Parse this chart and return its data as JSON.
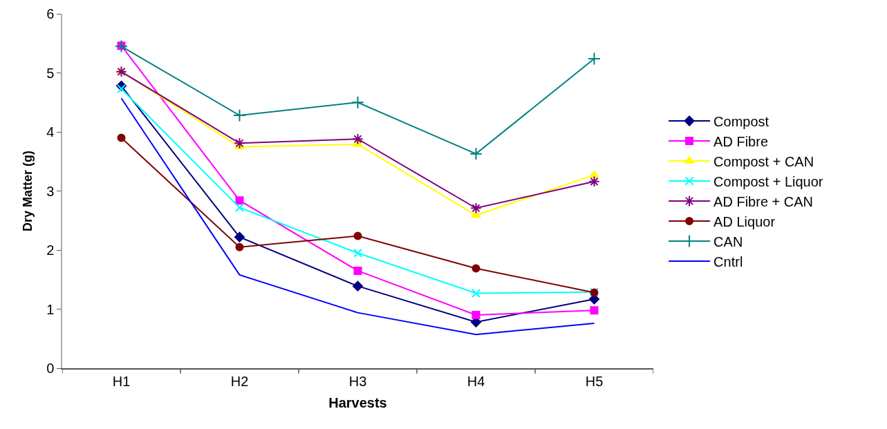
{
  "chart_data": {
    "type": "line",
    "xlabel": "Harvests",
    "ylabel": "Dry Matter (g)",
    "categories": [
      "H1",
      "H2",
      "H3",
      "H4",
      "H5"
    ],
    "ylim": [
      0,
      6
    ],
    "yticks": [
      0,
      1,
      2,
      3,
      4,
      5,
      6
    ],
    "grid": false,
    "legend": "right",
    "line_style": "solid",
    "series": [
      {
        "name": "Compost",
        "color": "#000080",
        "marker": "diamond",
        "values": [
          4.78,
          2.22,
          1.39,
          0.78,
          1.17
        ]
      },
      {
        "name": "AD Fibre",
        "color": "#ff00ff",
        "marker": "square",
        "values": [
          5.46,
          2.84,
          1.65,
          0.9,
          0.98
        ]
      },
      {
        "name": "Compost + CAN",
        "color": "#ffff00",
        "marker": "triangle",
        "values": [
          5.02,
          3.75,
          3.79,
          2.59,
          3.27
        ]
      },
      {
        "name": "Compost + Liquor",
        "color": "#00ffff",
        "marker": "x",
        "values": [
          4.73,
          2.72,
          1.95,
          1.27,
          1.29
        ]
      },
      {
        "name": "AD Fibre + CAN",
        "color": "#800080",
        "marker": "cross",
        "values": [
          5.02,
          3.81,
          3.88,
          2.71,
          3.16
        ]
      },
      {
        "name": "AD Liquor",
        "color": "#800000",
        "marker": "circle",
        "values": [
          3.9,
          2.05,
          2.24,
          1.69,
          1.28
        ]
      },
      {
        "name": "CAN",
        "color": "#008080",
        "marker": "cross",
        "values": [
          5.45,
          4.28,
          4.5,
          3.63,
          5.24
        ]
      },
      {
        "name": "Cntrl",
        "color": "#0000ff",
        "marker": "none",
        "values": [
          4.57,
          1.58,
          0.94,
          0.57,
          0.76
        ]
      }
    ]
  }
}
